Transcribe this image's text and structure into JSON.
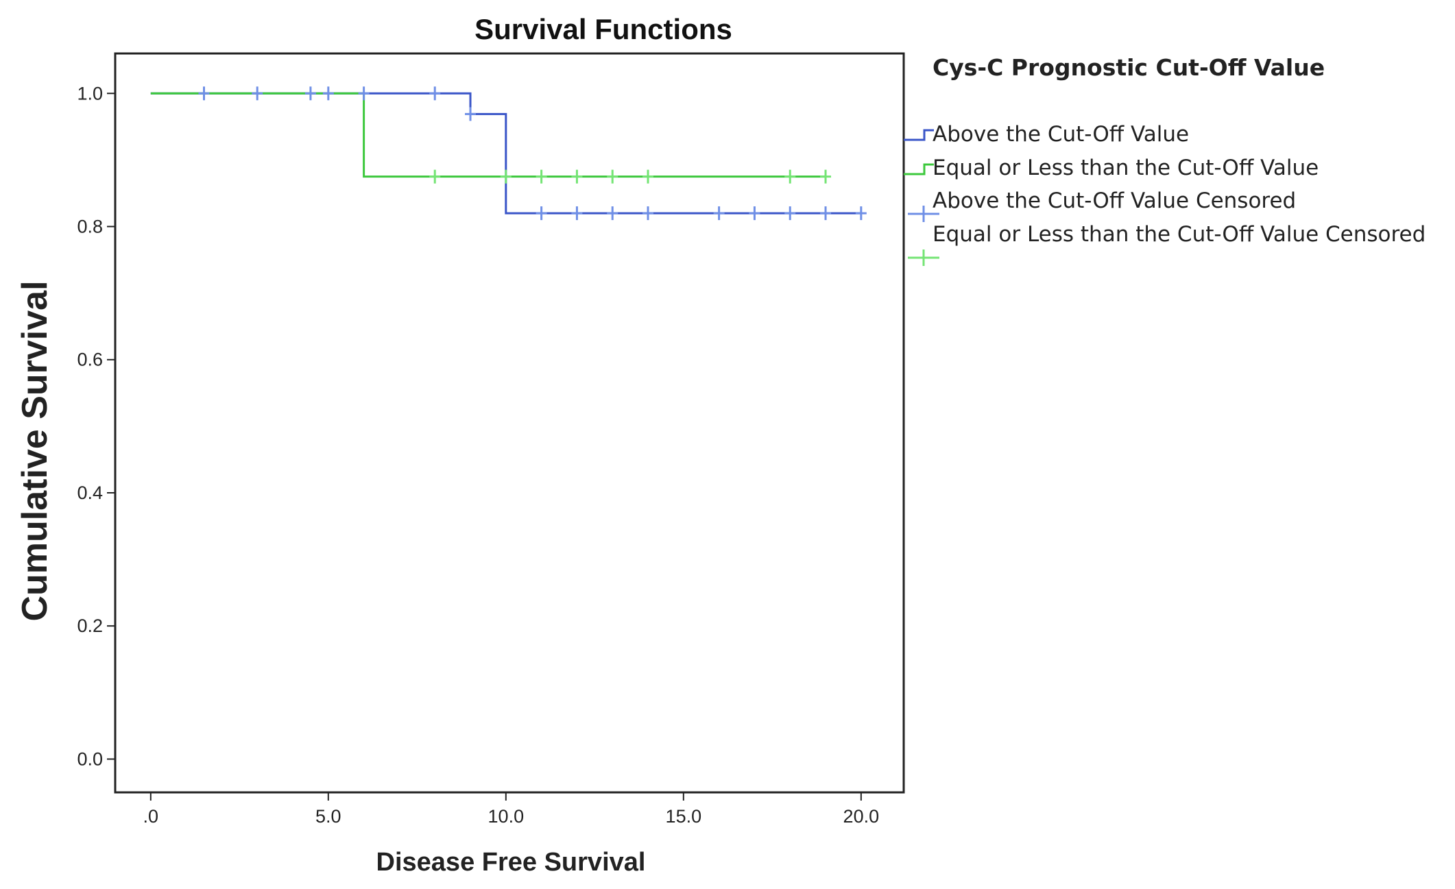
{
  "chart_data": {
    "type": "line",
    "title": "Survival Functions",
    "xlabel": "Disease Free Survival",
    "ylabel": "Cumulative Survival",
    "xlim": [
      -1,
      21.2
    ],
    "ylim": [
      -0.05,
      1.06
    ],
    "xticks": [
      0,
      5,
      10,
      15,
      20
    ],
    "xtick_labels": [
      ".0",
      "5.0",
      "10.0",
      "15.0",
      "20.0"
    ],
    "yticks": [
      0.0,
      0.2,
      0.4,
      0.6,
      0.8,
      1.0
    ],
    "ytick_labels": [
      "0.0",
      "0.2",
      "0.4",
      "0.6",
      "0.8",
      "1.0"
    ],
    "grid": false,
    "legend_title": "Cys-C Prognostic Cut-Off Value",
    "legend_position": "right",
    "series": [
      {
        "name": "Above the Cut-Off Value",
        "color": "#3a55c8",
        "step_x": [
          0,
          9,
          10,
          20
        ],
        "step_y": [
          1.0,
          0.969,
          0.82,
          0.82
        ]
      },
      {
        "name": "Equal or Less than the Cut-Off Value",
        "color": "#3cc83c",
        "step_x": [
          0,
          6,
          19
        ],
        "step_y": [
          1.0,
          0.875,
          0.875
        ]
      },
      {
        "name": "Above the Cut-Off Value Censored",
        "color": "#6f8fe6",
        "censored_x": [
          1.5,
          3,
          4.5,
          5,
          6,
          8,
          9,
          11,
          12,
          13,
          14,
          16,
          17,
          18,
          19,
          20
        ],
        "censored_y": [
          1.0,
          1.0,
          1.0,
          1.0,
          1.0,
          1.0,
          0.969,
          0.82,
          0.82,
          0.82,
          0.82,
          0.82,
          0.82,
          0.82,
          0.82,
          0.82
        ]
      },
      {
        "name": "Equal or Less than the Cut-Off Value Censored",
        "color": "#74e474",
        "censored_x": [
          8,
          10,
          11,
          12,
          13,
          14,
          18,
          19
        ],
        "censored_y": [
          0.875,
          0.875,
          0.875,
          0.875,
          0.875,
          0.875,
          0.875,
          0.875
        ]
      }
    ]
  }
}
